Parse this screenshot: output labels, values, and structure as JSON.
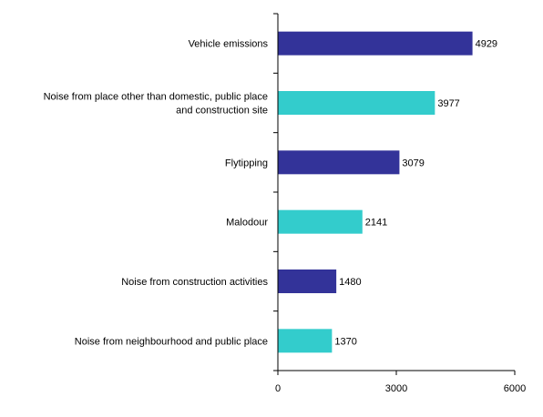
{
  "chart_data": {
    "type": "bar",
    "orientation": "horizontal",
    "categories": [
      [
        "Vehicle emissions"
      ],
      [
        "Noise from place other than domestic, public place",
        "and construction site"
      ],
      [
        "Flytipping"
      ],
      [
        "Malodour"
      ],
      [
        "Noise from construction activities"
      ],
      [
        "Noise from neighbourhood and public place"
      ]
    ],
    "values": [
      4929,
      3977,
      3079,
      2141,
      1480,
      1370
    ],
    "value_labels": [
      "4929",
      "3977",
      "3079",
      "2141",
      "1480",
      "1370"
    ],
    "bar_colors": [
      "#333399",
      "#33CCCC",
      "#333399",
      "#33CCCC",
      "#333399",
      "#33CCCC"
    ],
    "xlim": [
      0,
      6000
    ],
    "x_ticks": [
      0,
      3000,
      6000
    ],
    "x_tick_labels": [
      "0",
      "3000",
      "6000"
    ],
    "title": "",
    "xlabel": "",
    "ylabel": "",
    "grid": false,
    "legend": "none"
  }
}
